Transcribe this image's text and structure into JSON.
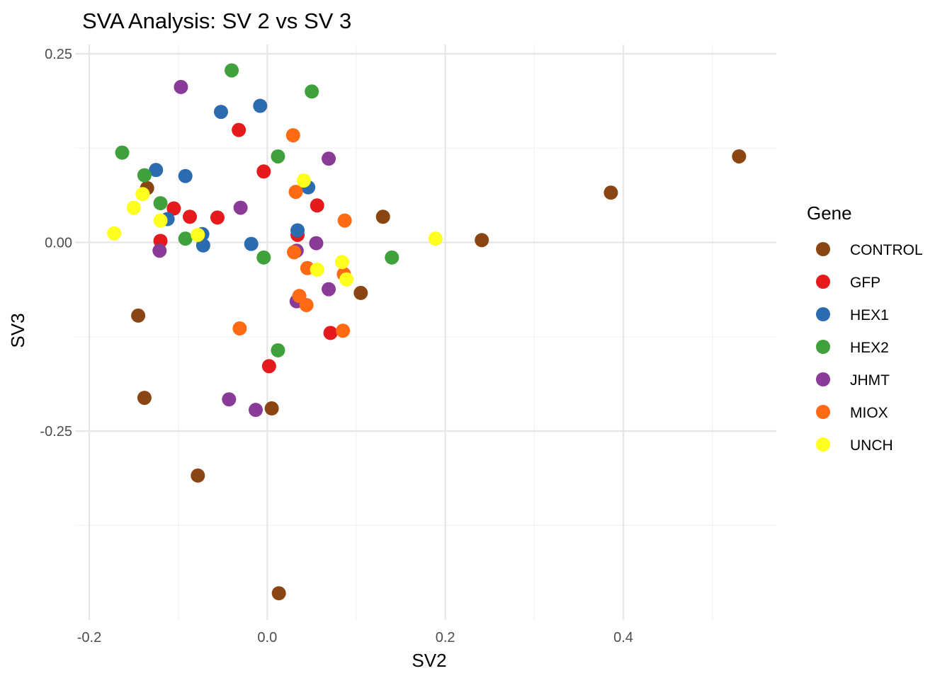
{
  "chart_data": {
    "type": "scatter",
    "title": "SVA Analysis: SV 2  vs SV 3",
    "xlabel": "SV2",
    "ylabel": "SV3",
    "xlim": [
      -0.2,
      0.57
    ],
    "ylim": [
      -0.5,
      0.255
    ],
    "x_ticks": [
      {
        "value": -0.2,
        "label": "-0.2"
      },
      {
        "value": 0.0,
        "label": "0.0"
      },
      {
        "value": 0.2,
        "label": "0.2"
      },
      {
        "value": 0.4,
        "label": "0.4"
      }
    ],
    "y_ticks": [
      {
        "value": 0.25,
        "label": "0.25"
      },
      {
        "value": 0.0,
        "label": "0.00"
      },
      {
        "value": -0.25,
        "label": "-0.25"
      }
    ],
    "x_minor_ticks": [
      -0.1,
      0.1,
      0.3,
      0.5
    ],
    "y_minor_ticks": [
      0.125,
      -0.125,
      -0.375
    ],
    "grid": true,
    "legend": {
      "title": "Gene",
      "position": "right"
    },
    "series": [
      {
        "name": "CONTROL",
        "color": "#8B4513",
        "points": [
          {
            "x": 0.53,
            "y": 0.114
          },
          {
            "x": 0.386,
            "y": 0.066
          },
          {
            "x": 0.241,
            "y": 0.003
          },
          {
            "x": 0.13,
            "y": 0.034
          },
          {
            "x": 0.105,
            "y": -0.067
          },
          {
            "x": -0.135,
            "y": 0.072
          },
          {
            "x": -0.145,
            "y": -0.097
          },
          {
            "x": -0.138,
            "y": -0.206
          },
          {
            "x": 0.005,
            "y": -0.22
          },
          {
            "x": -0.078,
            "y": -0.309
          },
          {
            "x": 0.013,
            "y": -0.465
          }
        ]
      },
      {
        "name": "GFP",
        "color": "#E41A1C",
        "points": [
          {
            "x": -0.032,
            "y": 0.149
          },
          {
            "x": -0.004,
            "y": 0.094
          },
          {
            "x": -0.105,
            "y": 0.045
          },
          {
            "x": -0.087,
            "y": 0.034
          },
          {
            "x": -0.056,
            "y": 0.033
          },
          {
            "x": -0.12,
            "y": 0.002
          },
          {
            "x": 0.056,
            "y": 0.049
          },
          {
            "x": 0.034,
            "y": 0.01
          },
          {
            "x": 0.071,
            "y": -0.12
          },
          {
            "x": 0.002,
            "y": -0.164
          }
        ]
      },
      {
        "name": "HEX1",
        "color": "#2B6BAF",
        "points": [
          {
            "x": -0.052,
            "y": 0.173
          },
          {
            "x": -0.008,
            "y": 0.181
          },
          {
            "x": -0.125,
            "y": 0.096
          },
          {
            "x": -0.092,
            "y": 0.088
          },
          {
            "x": -0.112,
            "y": 0.031
          },
          {
            "x": -0.073,
            "y": 0.011
          },
          {
            "x": -0.072,
            "y": -0.004
          },
          {
            "x": -0.018,
            "y": -0.002
          },
          {
            "x": 0.046,
            "y": 0.073
          },
          {
            "x": 0.034,
            "y": 0.016
          }
        ]
      },
      {
        "name": "HEX2",
        "color": "#3FA13B",
        "points": [
          {
            "x": -0.04,
            "y": 0.228
          },
          {
            "x": 0.05,
            "y": 0.2
          },
          {
            "x": -0.163,
            "y": 0.119
          },
          {
            "x": -0.138,
            "y": 0.089
          },
          {
            "x": 0.012,
            "y": 0.114
          },
          {
            "x": -0.12,
            "y": 0.052
          },
          {
            "x": -0.092,
            "y": 0.005
          },
          {
            "x": -0.004,
            "y": -0.02
          },
          {
            "x": 0.14,
            "y": -0.02
          },
          {
            "x": 0.012,
            "y": -0.143
          }
        ]
      },
      {
        "name": "JHMT",
        "color": "#8A3B98",
        "points": [
          {
            "x": -0.097,
            "y": 0.206
          },
          {
            "x": 0.069,
            "y": 0.111
          },
          {
            "x": -0.03,
            "y": 0.046
          },
          {
            "x": -0.121,
            "y": -0.011
          },
          {
            "x": 0.055,
            "y": -0.001
          },
          {
            "x": 0.033,
            "y": -0.011
          },
          {
            "x": 0.069,
            "y": -0.062
          },
          {
            "x": 0.033,
            "y": -0.078
          },
          {
            "x": -0.043,
            "y": -0.208
          },
          {
            "x": -0.013,
            "y": -0.222
          }
        ]
      },
      {
        "name": "MIOX",
        "color": "#FF6A13",
        "points": [
          {
            "x": 0.029,
            "y": 0.142
          },
          {
            "x": 0.032,
            "y": 0.067
          },
          {
            "x": 0.087,
            "y": 0.029
          },
          {
            "x": 0.03,
            "y": -0.013
          },
          {
            "x": 0.045,
            "y": -0.034
          },
          {
            "x": 0.086,
            "y": -0.042
          },
          {
            "x": 0.036,
            "y": -0.071
          },
          {
            "x": 0.044,
            "y": -0.083
          },
          {
            "x": -0.031,
            "y": -0.114
          },
          {
            "x": 0.085,
            "y": -0.117
          }
        ]
      },
      {
        "name": "UNCH",
        "color": "#FFFF1F",
        "points": [
          {
            "x": -0.172,
            "y": 0.012
          },
          {
            "x": -0.15,
            "y": 0.046
          },
          {
            "x": -0.14,
            "y": 0.064
          },
          {
            "x": -0.12,
            "y": 0.029
          },
          {
            "x": -0.078,
            "y": 0.01
          },
          {
            "x": 0.041,
            "y": 0.082
          },
          {
            "x": 0.189,
            "y": 0.005
          },
          {
            "x": 0.084,
            "y": -0.026
          },
          {
            "x": 0.056,
            "y": -0.036
          },
          {
            "x": 0.089,
            "y": -0.049
          }
        ]
      }
    ]
  }
}
